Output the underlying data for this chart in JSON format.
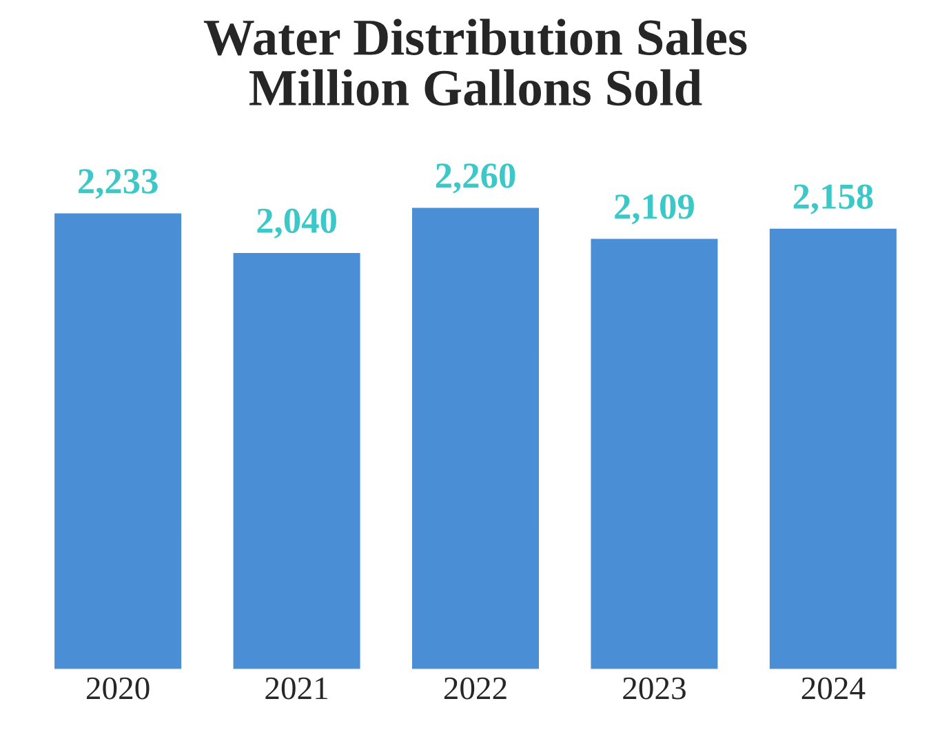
{
  "chart_data": {
    "type": "bar",
    "title": "Water Distribution Sales\nMillion Gallons Sold",
    "categories": [
      "2020",
      "2021",
      "2022",
      "2023",
      "2024"
    ],
    "values": [
      2233,
      2040,
      2260,
      2109,
      2158
    ],
    "value_labels": [
      "2,233",
      "2,040",
      "2,260",
      "2,109",
      "2,158"
    ],
    "color": "#4a8fd6",
    "grid": false,
    "tick_labels": "x"
  }
}
